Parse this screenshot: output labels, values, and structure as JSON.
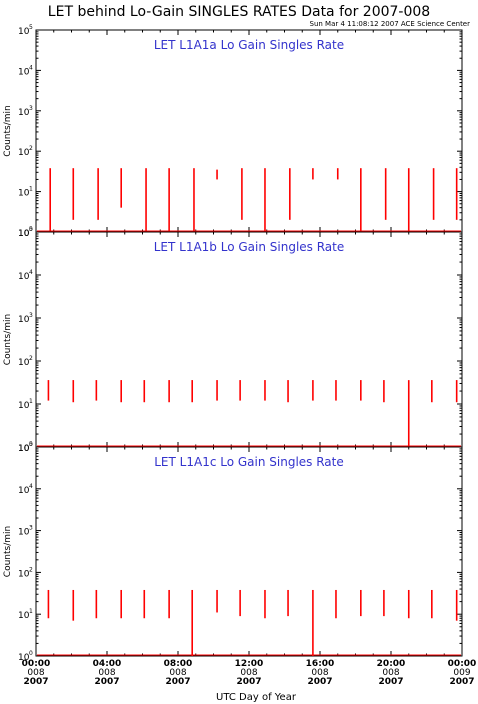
{
  "page_title": "LET behind Lo-Gain SINGLES RATES Data for 2007-008",
  "timestamp": "Sun Mar  4 11:08:12 2007 ACE Science Center",
  "xlabel": "UTC Day of Year",
  "ytick_mantissa": "10",
  "colors": {
    "series": "#ff0000",
    "panel_title": "#3333cc",
    "axis": "#000000"
  },
  "x_ticks": [
    {
      "time": "00:00",
      "day": "008",
      "year": "2007"
    },
    {
      "time": "04:00",
      "day": "008",
      "year": "2007"
    },
    {
      "time": "08:00",
      "day": "008",
      "year": "2007"
    },
    {
      "time": "12:00",
      "day": "008",
      "year": "2007"
    },
    {
      "time": "16:00",
      "day": "008",
      "year": "2007"
    },
    {
      "time": "20:00",
      "day": "008",
      "year": "2007"
    },
    {
      "time": "00:00",
      "day": "009",
      "year": "2007"
    }
  ],
  "chart_data": [
    {
      "type": "line",
      "title": "LET L1A1a Lo Gain Singles Rate",
      "ylabel": "Counts/min",
      "yscale": "log",
      "ylim": [
        1,
        100000
      ],
      "xlim_hours": [
        0,
        24
      ],
      "y_tick_exponents": [
        "0",
        "1",
        "2",
        "3",
        "4",
        "5"
      ],
      "bursts": [
        {
          "t": 0.8,
          "high": 38,
          "low": 1
        },
        {
          "t": 2.1,
          "high": 38,
          "low": 2
        },
        {
          "t": 3.5,
          "high": 38,
          "low": 2
        },
        {
          "t": 4.8,
          "high": 38,
          "low": 4
        },
        {
          "t": 6.2,
          "high": 38,
          "low": 1
        },
        {
          "t": 7.5,
          "high": 38,
          "low": 1
        },
        {
          "t": 8.9,
          "high": 38,
          "low": 1
        },
        {
          "t": 10.2,
          "high": 35,
          "low": 20
        },
        {
          "t": 11.6,
          "high": 38,
          "low": 2
        },
        {
          "t": 12.9,
          "high": 38,
          "low": 1
        },
        {
          "t": 14.3,
          "high": 38,
          "low": 2
        },
        {
          "t": 15.6,
          "high": 38,
          "low": 20
        },
        {
          "t": 17.0,
          "high": 38,
          "low": 20
        },
        {
          "t": 18.3,
          "high": 38,
          "low": 1
        },
        {
          "t": 19.7,
          "high": 38,
          "low": 2
        },
        {
          "t": 21.0,
          "high": 38,
          "low": 1
        },
        {
          "t": 22.4,
          "high": 38,
          "low": 2
        },
        {
          "t": 23.7,
          "high": 38,
          "low": 2
        }
      ]
    },
    {
      "type": "line",
      "title": "LET L1A1b Lo Gain Singles Rate",
      "ylabel": "Counts/min",
      "yscale": "log",
      "ylim": [
        1,
        100000
      ],
      "xlim_hours": [
        0,
        24
      ],
      "y_tick_exponents": [
        "0",
        "1",
        "2",
        "3",
        "4",
        "5"
      ],
      "bursts": [
        {
          "t": 0.7,
          "high": 36,
          "low": 12
        },
        {
          "t": 2.1,
          "high": 36,
          "low": 11
        },
        {
          "t": 3.4,
          "high": 36,
          "low": 12
        },
        {
          "t": 4.8,
          "high": 36,
          "low": 11
        },
        {
          "t": 6.1,
          "high": 36,
          "low": 11
        },
        {
          "t": 7.5,
          "high": 36,
          "low": 11
        },
        {
          "t": 8.8,
          "high": 36,
          "low": 11
        },
        {
          "t": 10.2,
          "high": 36,
          "low": 12
        },
        {
          "t": 11.5,
          "high": 36,
          "low": 12
        },
        {
          "t": 12.9,
          "high": 36,
          "low": 12
        },
        {
          "t": 14.2,
          "high": 36,
          "low": 11
        },
        {
          "t": 15.6,
          "high": 36,
          "low": 12
        },
        {
          "t": 16.9,
          "high": 36,
          "low": 12
        },
        {
          "t": 18.3,
          "high": 36,
          "low": 12
        },
        {
          "t": 19.6,
          "high": 36,
          "low": 11
        },
        {
          "t": 21.0,
          "high": 36,
          "low": 1
        },
        {
          "t": 22.3,
          "high": 36,
          "low": 11
        },
        {
          "t": 23.7,
          "high": 36,
          "low": 11
        }
      ]
    },
    {
      "type": "line",
      "title": "LET L1A1c Lo Gain Singles Rate",
      "ylabel": "Counts/min",
      "yscale": "log",
      "ylim": [
        1,
        100000
      ],
      "xlim_hours": [
        0,
        24
      ],
      "y_tick_exponents": [
        "0",
        "1",
        "2",
        "3",
        "4",
        "5"
      ],
      "bursts": [
        {
          "t": 0.7,
          "high": 38,
          "low": 8
        },
        {
          "t": 2.1,
          "high": 38,
          "low": 7
        },
        {
          "t": 3.4,
          "high": 38,
          "low": 8
        },
        {
          "t": 4.8,
          "high": 38,
          "low": 8
        },
        {
          "t": 6.1,
          "high": 38,
          "low": 8
        },
        {
          "t": 7.5,
          "high": 38,
          "low": 8
        },
        {
          "t": 8.8,
          "high": 38,
          "low": 1
        },
        {
          "t": 10.2,
          "high": 38,
          "low": 11
        },
        {
          "t": 11.5,
          "high": 38,
          "low": 9
        },
        {
          "t": 12.9,
          "high": 38,
          "low": 8
        },
        {
          "t": 14.2,
          "high": 38,
          "low": 9
        },
        {
          "t": 15.6,
          "high": 38,
          "low": 1
        },
        {
          "t": 16.9,
          "high": 38,
          "low": 8
        },
        {
          "t": 18.3,
          "high": 38,
          "low": 9
        },
        {
          "t": 19.6,
          "high": 38,
          "low": 9
        },
        {
          "t": 21.0,
          "high": 38,
          "low": 8
        },
        {
          "t": 22.3,
          "high": 38,
          "low": 8
        },
        {
          "t": 23.7,
          "high": 38,
          "low": 7
        }
      ]
    }
  ]
}
